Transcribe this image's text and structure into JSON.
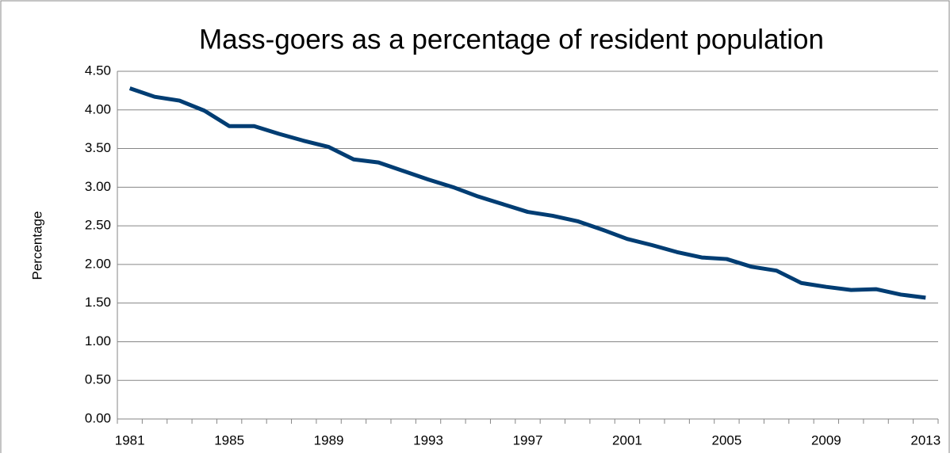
{
  "chart_data": {
    "type": "line",
    "title": "Mass-goers as a percentage of resident population",
    "y_label": "Percentage",
    "categories": [
      "1981",
      null,
      null,
      null,
      "1985",
      null,
      null,
      null,
      "1989",
      null,
      null,
      null,
      "1993",
      null,
      null,
      null,
      "1997",
      null,
      null,
      null,
      "2001",
      null,
      null,
      null,
      "2005",
      null,
      null,
      null,
      "2009",
      null,
      null,
      null,
      "2013"
    ],
    "series": [
      {
        "name": "Mass-goers",
        "color": "#003d73",
        "values": [
          4.28,
          4.17,
          4.12,
          3.99,
          3.79,
          3.79,
          3.69,
          3.6,
          3.52,
          3.36,
          3.32,
          3.21,
          3.1,
          3.0,
          2.88,
          2.78,
          2.68,
          2.63,
          2.56,
          2.45,
          2.33,
          2.25,
          2.16,
          2.09,
          2.07,
          1.97,
          1.92,
          1.76,
          1.71,
          1.67,
          1.68,
          1.61,
          1.57
        ]
      }
    ],
    "ylim": [
      0,
      4.5
    ],
    "yticks": [
      {
        "value": 0,
        "label": "0.00"
      },
      {
        "value": 0.5,
        "label": "0.50"
      },
      {
        "value": 1,
        "label": "1.00"
      },
      {
        "value": 1.5,
        "label": "1.50"
      },
      {
        "value": 2,
        "label": "2.00"
      },
      {
        "value": 2.5,
        "label": "2.50"
      },
      {
        "value": 3,
        "label": "3.00"
      },
      {
        "value": 3.5,
        "label": "3.50"
      },
      {
        "value": 4,
        "label": "4.00"
      },
      {
        "value": 4.5,
        "label": "4.50"
      }
    ],
    "grid": true
  }
}
